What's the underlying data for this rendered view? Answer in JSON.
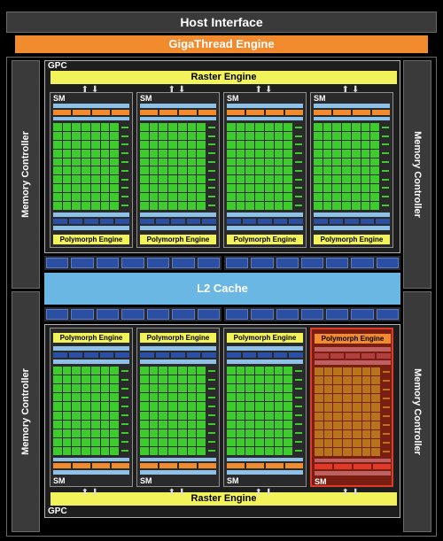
{
  "header": {
    "host_interface": "Host Interface",
    "gigathread_engine": "GigaThread Engine"
  },
  "memory_controller_label": "Memory Controller",
  "gpc_label": "GPC",
  "raster_engine_label": "Raster Engine",
  "polymorph_engine_label": "Polymorph Engine",
  "sm_label": "SM",
  "l2_cache_label": "L2 Cache",
  "arrows": "⬆⬇",
  "highlighted_sm": {
    "gpc": "bottom",
    "index": 4
  },
  "colors": {
    "giga": "#f28a2e",
    "raster": "#f2f25a",
    "l2": "#6bb7e3",
    "cores": "#3ecb2e",
    "highlight": "#e03a2a"
  }
}
